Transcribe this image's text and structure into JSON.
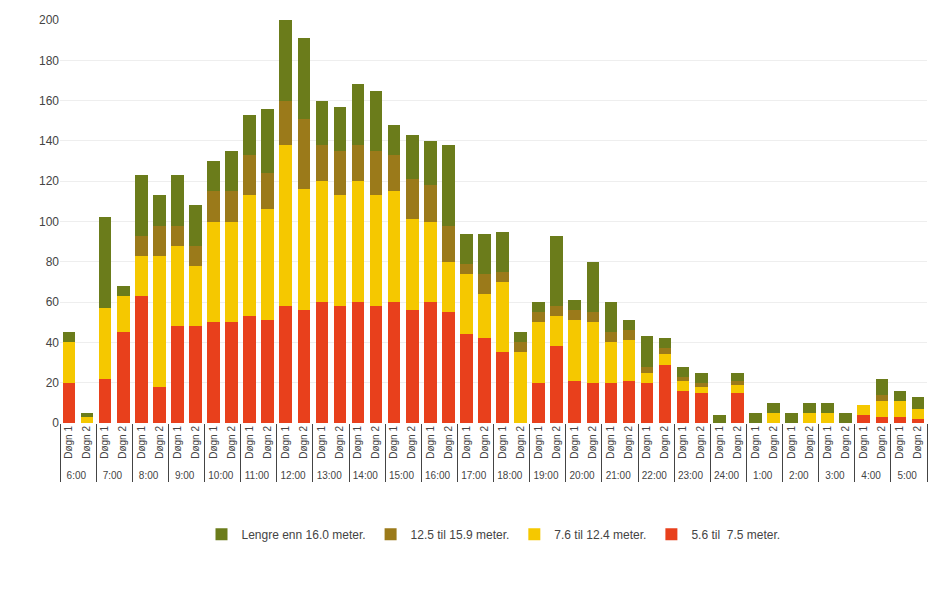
{
  "chart_data": {
    "type": "bar",
    "stacked": true,
    "categories": [
      "Døgn 1",
      "Døgn 2",
      "Døgn 1",
      "Døgn 2",
      "Døgn 1",
      "Døgn 2",
      "Døgn 1",
      "Døgn 2",
      "Døgn 1",
      "Døgn 2",
      "Døgn 1",
      "Døgn 2",
      "Døgn 1",
      "Døgn 2",
      "Døgn 1",
      "Døgn 2",
      "Døgn 1",
      "Døgn 2",
      "Døgn 1",
      "Døgn 2",
      "Døgn 1",
      "Døgn 2",
      "Døgn 1",
      "Døgn 2",
      "Døgn 1",
      "Døgn 2",
      "Døgn 1",
      "Døgn 2",
      "Døgn 1",
      "Døgn 2",
      "Døgn 1",
      "Døgn 2",
      "Døgn 1",
      "Døgn 2",
      "Døgn 1",
      "Døgn 2",
      "Døgn 1",
      "Døgn 2",
      "Døgn 1",
      "Døgn 2",
      "Døgn 1",
      "Døgn 2",
      "Døgn 1",
      "Døgn 2",
      "Døgn 1",
      "Døgn 2",
      "Døgn 1",
      "Døgn 2"
    ],
    "groups": [
      "6:00",
      "7:00",
      "8:00",
      "9:00",
      "10:00",
      "11:00",
      "12:00",
      "13:00",
      "14:00",
      "15:00",
      "16:00",
      "17:00",
      "18:00",
      "19:00",
      "20:00",
      "21:00",
      "22:00",
      "23:00",
      "24:00",
      "1:00",
      "2:00",
      "3:00",
      "4:00",
      "5:00"
    ],
    "series": [
      {
        "name": "5.6 til  7.5 meter.",
        "color": "#E8401C",
        "values": [
          20,
          0,
          22,
          45,
          63,
          18,
          48,
          48,
          50,
          50,
          53,
          51,
          58,
          56,
          60,
          58,
          60,
          58,
          60,
          56,
          60,
          55,
          44,
          42,
          35,
          0,
          20,
          38,
          21,
          20,
          20,
          21,
          20,
          29,
          16,
          15,
          0,
          15,
          0,
          0,
          0,
          0,
          0,
          0,
          4,
          3,
          3,
          2
        ]
      },
      {
        "name": "7.6 til 12.4 meter.",
        "color": "#F5C800",
        "values": [
          20,
          3,
          35,
          18,
          20,
          65,
          40,
          30,
          50,
          50,
          60,
          55,
          80,
          60,
          60,
          55,
          60,
          55,
          55,
          45,
          40,
          25,
          30,
          22,
          35,
          35,
          30,
          15,
          30,
          30,
          20,
          20,
          5,
          5,
          5,
          3,
          0,
          4,
          0,
          5,
          0,
          5,
          5,
          0,
          5,
          8,
          8,
          5
        ]
      },
      {
        "name": "12.5 til 15.9 meter.",
        "color": "#9B7A1A",
        "values": [
          0,
          0,
          0,
          0,
          10,
          15,
          10,
          10,
          15,
          15,
          20,
          18,
          22,
          35,
          18,
          22,
          18,
          22,
          18,
          20,
          18,
          18,
          5,
          10,
          5,
          5,
          5,
          5,
          5,
          5,
          5,
          5,
          3,
          3,
          2,
          2,
          0,
          2,
          0,
          0,
          0,
          0,
          0,
          0,
          0,
          3,
          0,
          0
        ]
      },
      {
        "name": "Lengre enn 16.0 meter.",
        "color": "#6B7C1B",
        "values": [
          5,
          2,
          45,
          5,
          30,
          15,
          25,
          20,
          15,
          20,
          20,
          32,
          40,
          40,
          22,
          22,
          30,
          30,
          15,
          22,
          22,
          40,
          15,
          20,
          20,
          5,
          5,
          35,
          5,
          25,
          15,
          5,
          15,
          5,
          5,
          5,
          4,
          4,
          5,
          5,
          5,
          5,
          5,
          5,
          0,
          8,
          5,
          6
        ]
      }
    ],
    "ylim": [
      0,
      200
    ],
    "yticks": [
      0,
      20,
      40,
      60,
      80,
      100,
      120,
      140,
      160,
      180,
      200
    ],
    "grid": true,
    "legend": "bottom"
  }
}
